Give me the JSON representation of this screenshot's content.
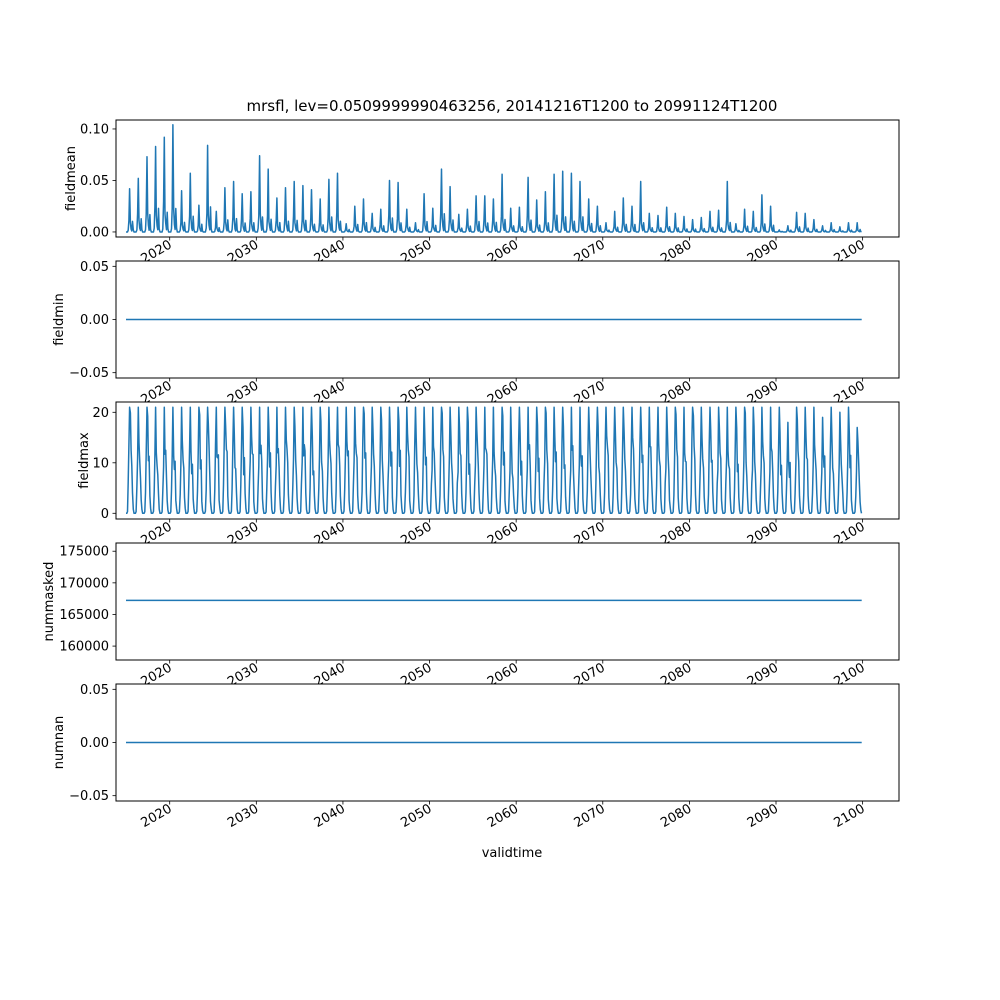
{
  "chart_data": {
    "type": "line",
    "title": "mrsfl, lev=0.0509999990463256, 20141216T1200 to 20991124T1200",
    "xlabel": "validtime",
    "x_start": "2014-12-16",
    "x_end": "2099-11-24",
    "x_sampling": "monthly",
    "xlim": [
      2013.8,
      2104.2
    ],
    "x_ticks": [
      2020,
      2030,
      2040,
      2050,
      2060,
      2070,
      2080,
      2090,
      2100
    ],
    "x_tick_labels": [
      "2020",
      "2030",
      "2040",
      "2050",
      "2060",
      "2070",
      "2080",
      "2090",
      "2100"
    ],
    "line_color": "#1f77b4",
    "panels": [
      {
        "ylabel": "fieldmean",
        "ylim": [
          -0.0049,
          0.1087
        ],
        "y_ticks": [
          0.0,
          0.05,
          0.1
        ],
        "y_tick_labels": [
          "0.00",
          "0.05",
          "0.10"
        ],
        "kind": "seasonal",
        "annual_peaks_from_2015": [
          0.042,
          0.052,
          0.073,
          0.083,
          0.092,
          0.104,
          0.04,
          0.057,
          0.026,
          0.084,
          0.02,
          0.043,
          0.049,
          0.037,
          0.039,
          0.074,
          0.061,
          0.033,
          0.043,
          0.049,
          0.045,
          0.041,
          0.032,
          0.051,
          0.057,
          0.008,
          0.025,
          0.032,
          0.018,
          0.022,
          0.05,
          0.048,
          0.022,
          0.009,
          0.037,
          0.023,
          0.061,
          0.044,
          0.017,
          0.022,
          0.035,
          0.035,
          0.032,
          0.056,
          0.023,
          0.024,
          0.053,
          0.031,
          0.039,
          0.056,
          0.059,
          0.057,
          0.049,
          0.032,
          0.025,
          0.009,
          0.02,
          0.033,
          0.025,
          0.049,
          0.018,
          0.016,
          0.024,
          0.018,
          0.015,
          0.012,
          0.014,
          0.02,
          0.021,
          0.049,
          0.008,
          0.022,
          0.02,
          0.036,
          0.025,
          0.002,
          0.006,
          0.019,
          0.018,
          0.012,
          0.006,
          0.009,
          0.005,
          0.009,
          0.009
        ]
      },
      {
        "ylabel": "fieldmin",
        "ylim": [
          -0.055,
          0.055
        ],
        "y_ticks": [
          -0.05,
          0.0,
          0.05
        ],
        "y_tick_labels": [
          "−0.05",
          "0.00",
          "0.05"
        ],
        "kind": "constant",
        "value": 0.0
      },
      {
        "ylabel": "fieldmax",
        "ylim": [
          -1.13,
          22.04
        ],
        "y_ticks": [
          0,
          10,
          20
        ],
        "y_tick_labels": [
          "0",
          "10",
          "20"
        ],
        "kind": "seasonal_max",
        "annual_peaks_from_2015": [
          21,
          21,
          21,
          21,
          21,
          21,
          21,
          21,
          21,
          21,
          21,
          21,
          21,
          21,
          21,
          21,
          21,
          21,
          21,
          21,
          21,
          21,
          21,
          21,
          21,
          21,
          21,
          21,
          21,
          21,
          21,
          21,
          21,
          21,
          21,
          21,
          21,
          21,
          21,
          21,
          21,
          21,
          21,
          21,
          21,
          21,
          21,
          21,
          21,
          21,
          21,
          21,
          21,
          21,
          21,
          21,
          21,
          21,
          21,
          21,
          21,
          21,
          21,
          21,
          21,
          21,
          21,
          21,
          21,
          21,
          21,
          21,
          21,
          21,
          21,
          21,
          18,
          21,
          21,
          21,
          19,
          21,
          20,
          21,
          17
        ]
      },
      {
        "ylabel": "nummasked",
        "ylim": [
          157800,
          176300
        ],
        "y_ticks": [
          160000,
          165000,
          170000,
          175000
        ],
        "y_tick_labels": [
          "160000",
          "165000",
          "170000",
          "175000"
        ],
        "kind": "constant",
        "value": 167220
      },
      {
        "ylabel": "numnan",
        "ylim": [
          -0.055,
          0.055
        ],
        "y_ticks": [
          -0.05,
          0.0,
          0.05
        ],
        "y_tick_labels": [
          "−0.05",
          "0.00",
          "0.05"
        ],
        "kind": "constant",
        "value": 0.0
      }
    ]
  }
}
